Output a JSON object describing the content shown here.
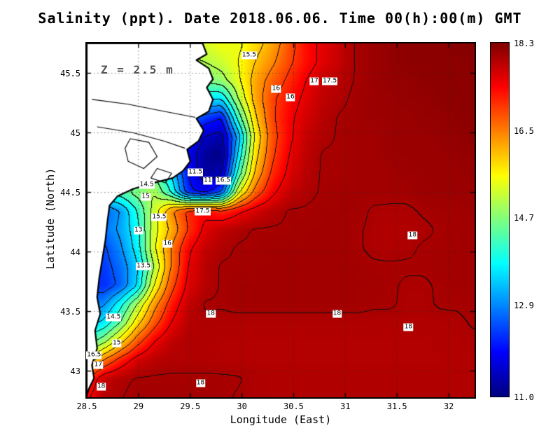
{
  "chart_data": {
    "type": "heatmap",
    "title": "Salinity (ppt). Date 2018.06.06. Time 00(h):00(m) GMT",
    "annotation": "Z = 2.5 m",
    "xlabel": "Longitude (East)",
    "ylabel": "Latitude (North)",
    "x_range": [
      28.5,
      32.25
    ],
    "y_range": [
      42.78,
      45.75
    ],
    "x_ticks": {
      "values": [
        28.5,
        29,
        29.5,
        30,
        30.5,
        31,
        31.5,
        32
      ],
      "labels": [
        "28.5",
        "29",
        "29.5",
        "30",
        "30.5",
        "31",
        "31.5",
        "32"
      ]
    },
    "y_ticks": {
      "values": [
        43,
        43.5,
        44,
        44.5,
        45,
        45.5
      ],
      "labels": [
        "43",
        "43.5",
        "44",
        "44.5",
        "45",
        "45.5"
      ]
    },
    "colorbar": {
      "min": 11.0,
      "max": 18.3,
      "colormap": "jet",
      "tick_values": [
        18.3,
        16.5,
        14.7,
        12.9,
        11.0
      ],
      "tick_labels": [
        "18.3",
        "16.5",
        "14.7",
        "12.9",
        "11.0"
      ]
    },
    "contour_levels": [
      11.5,
      12,
      12.5,
      13,
      13.5,
      14,
      14.5,
      15,
      15.5,
      16,
      16.5,
      17,
      17.5,
      18
    ],
    "grid": {
      "nx": 24,
      "ny": 20,
      "lon_min": 28.5,
      "lon_max": 32.25,
      "lat_min": 42.78,
      "lat_max": 45.75,
      "values_north_to_south": [
        [
          15.2,
          15.2,
          15.2,
          15.2,
          15.2,
          15.2,
          15.2,
          15.3,
          15.5,
          15.4,
          15.8,
          16.2,
          16.8,
          17.3,
          17.6,
          17.8,
          18.02,
          18.1,
          18.15,
          18.2,
          18.2,
          18.2,
          18.25,
          18.25
        ],
        [
          14.9,
          14.9,
          14.9,
          14.9,
          14.9,
          14.9,
          14.9,
          15.0,
          15.2,
          15.5,
          16.0,
          16.4,
          16.9,
          17.3,
          17.6,
          17.8,
          18.02,
          18.1,
          18.15,
          18.2,
          18.2,
          18.2,
          18.2,
          18.25
        ],
        [
          14.5,
          14.5,
          14.5,
          14.5,
          14.5,
          14.5,
          14.5,
          14.6,
          14.8,
          15.4,
          16.2,
          16.7,
          17.1,
          17.5,
          17.8,
          17.9,
          18.02,
          18.1,
          18.15,
          18.15,
          18.2,
          18.2,
          18.2,
          18.2
        ],
        [
          13.8,
          13.8,
          13.8,
          13.8,
          13.8,
          13.8,
          13.8,
          13.6,
          13.5,
          15.0,
          16.2,
          16.9,
          17.3,
          17.6,
          17.85,
          17.95,
          18.05,
          18.1,
          18.1,
          18.15,
          18.15,
          18.2,
          18.2,
          18.2
        ],
        [
          13.0,
          13.0,
          13.0,
          13.0,
          13.0,
          13.0,
          12.8,
          12.3,
          12.0,
          14.2,
          15.9,
          16.9,
          17.4,
          17.7,
          17.9,
          18.02,
          18.05,
          18.1,
          18.1,
          18.1,
          18.15,
          18.15,
          18.2,
          18.2
        ],
        [
          12.5,
          12.5,
          12.5,
          12.5,
          12.5,
          12.5,
          12.0,
          11.5,
          11.3,
          13.2,
          15.6,
          16.8,
          17.4,
          17.8,
          17.95,
          18.02,
          18.05,
          18.05,
          18.1,
          18.1,
          18.1,
          18.15,
          18.15,
          18.2
        ],
        [
          12.5,
          12.5,
          12.5,
          12.5,
          12.8,
          12.5,
          11.8,
          11.2,
          11.0,
          13.6,
          15.8,
          16.9,
          17.5,
          17.85,
          18.02,
          18.02,
          18.05,
          18.05,
          18.1,
          18.1,
          18.1,
          18.1,
          18.15,
          18.15
        ],
        [
          13.5,
          13.5,
          13.5,
          14.0,
          14.5,
          13.5,
          12.0,
          11.2,
          11.4,
          14.2,
          16.1,
          17.1,
          17.6,
          17.9,
          18.02,
          18.02,
          18.05,
          18.05,
          18.05,
          18.1,
          18.1,
          18.1,
          18.1,
          18.15
        ],
        [
          14.0,
          14.0,
          14.3,
          14.7,
          15.0,
          14.0,
          12.2,
          11.8,
          12.5,
          15.4,
          16.7,
          17.4,
          17.8,
          17.95,
          18.02,
          18.05,
          18.05,
          18.05,
          18.05,
          18.05,
          18.1,
          18.1,
          18.1,
          18.1
        ],
        [
          12.8,
          12.6,
          13.0,
          14.0,
          15.2,
          16.4,
          17.1,
          17.4,
          17.1,
          17.4,
          17.7,
          17.9,
          18.02,
          18.02,
          18.05,
          18.05,
          18.05,
          17.98,
          17.97,
          17.97,
          18.02,
          18.05,
          18.05,
          18.1
        ],
        [
          12.9,
          12.7,
          13.1,
          13.8,
          15.3,
          16.1,
          17.0,
          17.6,
          17.85,
          17.95,
          18.02,
          18.02,
          18.02,
          18.05,
          18.05,
          18.05,
          18.02,
          17.97,
          17.95,
          17.95,
          17.97,
          18.02,
          18.05,
          18.05
        ],
        [
          12.6,
          12.4,
          12.9,
          13.7,
          15.4,
          16.5,
          17.4,
          17.8,
          17.95,
          18.02,
          18.02,
          18.05,
          18.05,
          18.05,
          18.05,
          18.05,
          18.02,
          17.97,
          17.95,
          17.97,
          18.02,
          18.02,
          18.05,
          18.05
        ],
        [
          12.5,
          12.3,
          12.7,
          13.4,
          15.0,
          16.5,
          17.5,
          17.9,
          18.02,
          18.02,
          18.05,
          18.05,
          18.05,
          18.05,
          18.05,
          18.05,
          18.05,
          18.02,
          18.02,
          18.02,
          18.02,
          18.05,
          18.05,
          18.05
        ],
        [
          12.4,
          12.2,
          12.6,
          13.5,
          15.5,
          16.8,
          17.6,
          17.9,
          18.02,
          18.05,
          18.05,
          18.05,
          18.05,
          18.05,
          18.05,
          18.05,
          18.05,
          18.05,
          18.02,
          17.98,
          17.98,
          18.02,
          18.05,
          18.05
        ],
        [
          12.8,
          12.9,
          13.8,
          15.0,
          16.3,
          17.2,
          17.8,
          18.02,
          18.02,
          18.05,
          18.05,
          18.05,
          18.05,
          18.05,
          18.05,
          18.05,
          18.05,
          18.02,
          18.02,
          17.97,
          17.97,
          18.02,
          18.02,
          18.05
        ],
        [
          13.3,
          13.6,
          14.5,
          15.8,
          16.8,
          17.5,
          17.9,
          17.97,
          17.95,
          17.95,
          17.95,
          17.95,
          17.95,
          17.95,
          17.95,
          17.95,
          17.95,
          17.95,
          17.95,
          17.95,
          17.95,
          17.95,
          17.97,
          18.02
        ],
        [
          14.2,
          14.8,
          15.8,
          16.8,
          17.5,
          17.85,
          17.95,
          17.95,
          17.93,
          17.93,
          17.93,
          17.93,
          17.93,
          17.93,
          17.93,
          17.93,
          17.93,
          17.93,
          17.93,
          17.93,
          17.93,
          17.95,
          17.95,
          17.97
        ],
        [
          15.5,
          16.5,
          17.2,
          17.7,
          17.9,
          17.95,
          17.95,
          17.95,
          17.93,
          17.93,
          17.93,
          17.93,
          17.93,
          17.93,
          17.93,
          17.93,
          17.93,
          17.93,
          17.93,
          17.93,
          17.93,
          17.93,
          17.95,
          17.95
        ],
        [
          17.0,
          17.8,
          17.95,
          18.02,
          18.02,
          18.02,
          18.02,
          18.02,
          18.02,
          18.01,
          17.97,
          17.95,
          17.95,
          17.95,
          17.95,
          17.95,
          17.95,
          17.95,
          17.95,
          17.95,
          17.95,
          17.95,
          17.95,
          17.95
        ],
        [
          17.4,
          17.9,
          17.99,
          18.05,
          18.05,
          18.05,
          18.05,
          18.05,
          18.02,
          17.99,
          17.97,
          17.95,
          17.95,
          17.95,
          17.95,
          17.95,
          17.95,
          17.95,
          17.95,
          17.95,
          17.95,
          17.95,
          17.95,
          17.95
        ]
      ]
    },
    "contour_labels": [
      {
        "text": "15.5",
        "lon": 30.07,
        "lat": 45.65
      },
      {
        "text": "16",
        "lon": 30.33,
        "lat": 45.37
      },
      {
        "text": "16",
        "lon": 30.47,
        "lat": 45.3
      },
      {
        "text": "17",
        "lon": 30.7,
        "lat": 45.43
      },
      {
        "text": "17.5",
        "lon": 30.85,
        "lat": 45.43
      },
      {
        "text": "11.5",
        "lon": 29.55,
        "lat": 44.67
      },
      {
        "text": "11",
        "lon": 29.67,
        "lat": 44.6
      },
      {
        "text": "16.5",
        "lon": 29.82,
        "lat": 44.6
      },
      {
        "text": "14.5",
        "lon": 29.08,
        "lat": 44.56
      },
      {
        "text": "15",
        "lon": 29.07,
        "lat": 44.46
      },
      {
        "text": "15.5",
        "lon": 29.2,
        "lat": 44.29
      },
      {
        "text": "17.5",
        "lon": 29.62,
        "lat": 44.34
      },
      {
        "text": "13",
        "lon": 29.0,
        "lat": 44.18
      },
      {
        "text": "16",
        "lon": 29.28,
        "lat": 44.07
      },
      {
        "text": "13.5",
        "lon": 29.05,
        "lat": 43.88
      },
      {
        "text": "14.5",
        "lon": 28.76,
        "lat": 43.45
      },
      {
        "text": "15",
        "lon": 28.79,
        "lat": 43.23
      },
      {
        "text": "16.5",
        "lon": 28.57,
        "lat": 43.13
      },
      {
        "text": "17",
        "lon": 28.61,
        "lat": 43.05
      },
      {
        "text": "18",
        "lon": 29.7,
        "lat": 43.48
      },
      {
        "text": "18",
        "lon": 30.92,
        "lat": 43.48
      },
      {
        "text": "18",
        "lon": 31.65,
        "lat": 44.14
      },
      {
        "text": "18",
        "lon": 31.61,
        "lat": 43.37
      },
      {
        "text": "18",
        "lon": 29.6,
        "lat": 42.9
      },
      {
        "text": "18",
        "lon": 28.64,
        "lat": 42.87
      }
    ],
    "coastline": [
      [
        29.62,
        45.75
      ],
      [
        29.66,
        45.66
      ],
      [
        29.56,
        45.61
      ],
      [
        29.68,
        45.54
      ],
      [
        29.72,
        45.45
      ],
      [
        29.66,
        45.38
      ],
      [
        29.72,
        45.28
      ],
      [
        29.68,
        45.18
      ],
      [
        29.56,
        45.12
      ],
      [
        29.63,
        45.02
      ],
      [
        29.58,
        44.93
      ],
      [
        29.47,
        44.86
      ],
      [
        29.5,
        44.76
      ],
      [
        29.43,
        44.68
      ],
      [
        29.33,
        44.62
      ],
      [
        29.15,
        44.58
      ],
      [
        28.95,
        44.53
      ],
      [
        28.8,
        44.47
      ],
      [
        28.72,
        44.39
      ],
      [
        28.7,
        44.26
      ],
      [
        28.68,
        44.1
      ],
      [
        28.65,
        43.94
      ],
      [
        28.62,
        43.78
      ],
      [
        28.6,
        43.62
      ],
      [
        28.63,
        43.48
      ],
      [
        28.58,
        43.34
      ],
      [
        28.6,
        43.19
      ],
      [
        28.55,
        43.05
      ],
      [
        28.57,
        42.94
      ],
      [
        28.52,
        42.85
      ],
      [
        28.5,
        42.8
      ]
    ],
    "lakes": [
      [
        [
          28.92,
          44.95
        ],
        [
          29.1,
          44.92
        ],
        [
          29.18,
          44.8
        ],
        [
          29.05,
          44.7
        ],
        [
          28.9,
          44.76
        ],
        [
          28.87,
          44.87
        ]
      ],
      [
        [
          29.18,
          44.7
        ],
        [
          29.32,
          44.66
        ],
        [
          29.26,
          44.58
        ],
        [
          29.12,
          44.62
        ]
      ]
    ],
    "land_detail_lines": [
      [
        [
          28.55,
          45.28
        ],
        [
          28.9,
          45.24
        ],
        [
          29.25,
          45.18
        ],
        [
          29.55,
          45.13
        ]
      ],
      [
        [
          28.6,
          45.05
        ],
        [
          28.95,
          45.0
        ],
        [
          29.25,
          44.93
        ],
        [
          29.45,
          44.87
        ]
      ]
    ]
  }
}
